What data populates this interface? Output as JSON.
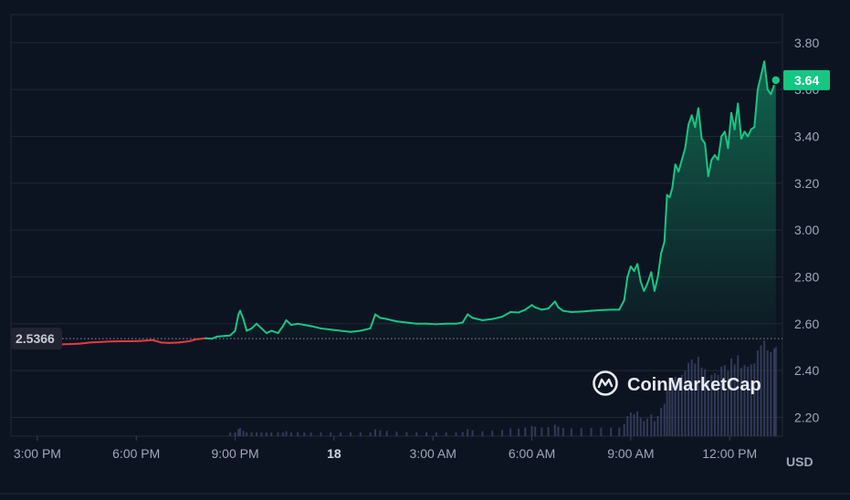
{
  "chart_data": {
    "type": "line",
    "y_ticks": [
      "3.80",
      "3.60",
      "3.40",
      "3.20",
      "3.00",
      "2.80",
      "2.60",
      "2.40",
      "2.20"
    ],
    "y_tick_values": [
      3.8,
      3.6,
      3.4,
      3.2,
      3.0,
      2.8,
      2.6,
      2.4,
      2.2
    ],
    "x_ticks": [
      {
        "label": "3:00 PM",
        "hour": 0,
        "bold": false
      },
      {
        "label": "6:00 PM",
        "hour": 3,
        "bold": false
      },
      {
        "label": "9:00 PM",
        "hour": 6,
        "bold": false
      },
      {
        "label": "18",
        "hour": 9,
        "bold": true
      },
      {
        "label": "3:00 AM",
        "hour": 12,
        "bold": false
      },
      {
        "label": "6:00 AM",
        "hour": 15,
        "bold": false
      },
      {
        "label": "9:00 AM",
        "hour": 18,
        "bold": false
      },
      {
        "label": "12:00 PM",
        "hour": 21,
        "bold": false
      }
    ],
    "ylim": [
      2.12,
      3.92
    ],
    "xlim_hours": [
      -0.8,
      22.6
    ],
    "ylabel": "USD",
    "baseline_value": 2.5366,
    "baseline_label": "2.5366",
    "current_value": 3.64,
    "current_label": "3.64",
    "grid": true,
    "colors": {
      "up": "#16c784",
      "down": "#ea3943",
      "grid": "#222836",
      "background": "#0d1421",
      "volume": "#3b4466"
    },
    "series": [
      {
        "points": [
          [
            -0.6,
            2.533
          ],
          [
            -0.3,
            2.532
          ],
          [
            0.0,
            2.531
          ],
          [
            0.25,
            2.525
          ],
          [
            0.45,
            2.515
          ],
          [
            0.7,
            2.512
          ],
          [
            1.0,
            2.513
          ],
          [
            1.3,
            2.515
          ],
          [
            1.6,
            2.52
          ],
          [
            1.9,
            2.522
          ],
          [
            2.2,
            2.524
          ],
          [
            2.5,
            2.525
          ],
          [
            2.8,
            2.525
          ],
          [
            3.1,
            2.526
          ],
          [
            3.3,
            2.528
          ],
          [
            3.5,
            2.53
          ],
          [
            3.75,
            2.52
          ],
          [
            4.0,
            2.518
          ],
          [
            4.3,
            2.52
          ],
          [
            4.6,
            2.525
          ],
          [
            4.8,
            2.533
          ],
          [
            5.1,
            2.538
          ],
          [
            5.3,
            2.536
          ],
          [
            5.45,
            2.545
          ],
          [
            5.7,
            2.548
          ],
          [
            5.85,
            2.55
          ],
          [
            6.0,
            2.57
          ],
          [
            6.1,
            2.64
          ],
          [
            6.15,
            2.655
          ],
          [
            6.25,
            2.62
          ],
          [
            6.35,
            2.57
          ],
          [
            6.5,
            2.58
          ],
          [
            6.65,
            2.6
          ],
          [
            6.8,
            2.58
          ],
          [
            6.95,
            2.56
          ],
          [
            7.1,
            2.57
          ],
          [
            7.3,
            2.56
          ],
          [
            7.45,
            2.59
          ],
          [
            7.55,
            2.615
          ],
          [
            7.7,
            2.595
          ],
          [
            7.9,
            2.6
          ],
          [
            8.1,
            2.595
          ],
          [
            8.3,
            2.59
          ],
          [
            8.6,
            2.58
          ],
          [
            8.9,
            2.575
          ],
          [
            9.2,
            2.57
          ],
          [
            9.5,
            2.565
          ],
          [
            9.8,
            2.57
          ],
          [
            10.1,
            2.58
          ],
          [
            10.25,
            2.64
          ],
          [
            10.4,
            2.625
          ],
          [
            10.6,
            2.62
          ],
          [
            10.9,
            2.61
          ],
          [
            11.2,
            2.605
          ],
          [
            11.5,
            2.6
          ],
          [
            11.8,
            2.6
          ],
          [
            12.1,
            2.598
          ],
          [
            12.4,
            2.6
          ],
          [
            12.7,
            2.6
          ],
          [
            12.9,
            2.605
          ],
          [
            13.05,
            2.64
          ],
          [
            13.2,
            2.625
          ],
          [
            13.5,
            2.615
          ],
          [
            13.8,
            2.62
          ],
          [
            14.1,
            2.63
          ],
          [
            14.35,
            2.65
          ],
          [
            14.6,
            2.648
          ],
          [
            14.8,
            2.66
          ],
          [
            15.0,
            2.68
          ],
          [
            15.1,
            2.67
          ],
          [
            15.3,
            2.66
          ],
          [
            15.5,
            2.665
          ],
          [
            15.7,
            2.695
          ],
          [
            15.8,
            2.67
          ],
          [
            15.95,
            2.655
          ],
          [
            16.2,
            2.65
          ],
          [
            16.5,
            2.652
          ],
          [
            16.8,
            2.655
          ],
          [
            17.1,
            2.658
          ],
          [
            17.4,
            2.66
          ],
          [
            17.65,
            2.66
          ],
          [
            17.8,
            2.7
          ],
          [
            17.9,
            2.8
          ],
          [
            18.0,
            2.845
          ],
          [
            18.1,
            2.825
          ],
          [
            18.2,
            2.855
          ],
          [
            18.3,
            2.78
          ],
          [
            18.4,
            2.74
          ],
          [
            18.5,
            2.77
          ],
          [
            18.62,
            2.82
          ],
          [
            18.72,
            2.74
          ],
          [
            18.82,
            2.8
          ],
          [
            18.92,
            2.9
          ],
          [
            19.02,
            2.95
          ],
          [
            19.1,
            3.15
          ],
          [
            19.18,
            3.14
          ],
          [
            19.26,
            3.18
          ],
          [
            19.35,
            3.28
          ],
          [
            19.45,
            3.25
          ],
          [
            19.55,
            3.3
          ],
          [
            19.65,
            3.35
          ],
          [
            19.75,
            3.45
          ],
          [
            19.85,
            3.49
          ],
          [
            19.95,
            3.44
          ],
          [
            20.05,
            3.52
          ],
          [
            20.15,
            3.39
          ],
          [
            20.25,
            3.37
          ],
          [
            20.35,
            3.23
          ],
          [
            20.45,
            3.3
          ],
          [
            20.55,
            3.32
          ],
          [
            20.65,
            3.3
          ],
          [
            20.75,
            3.4
          ],
          [
            20.85,
            3.42
          ],
          [
            20.95,
            3.35
          ],
          [
            21.05,
            3.5
          ],
          [
            21.15,
            3.43
          ],
          [
            21.25,
            3.54
          ],
          [
            21.35,
            3.39
          ],
          [
            21.45,
            3.42
          ],
          [
            21.55,
            3.4
          ],
          [
            21.65,
            3.43
          ],
          [
            21.75,
            3.44
          ],
          [
            21.85,
            3.6
          ],
          [
            21.95,
            3.66
          ],
          [
            22.05,
            3.72
          ],
          [
            22.15,
            3.6
          ],
          [
            22.25,
            3.58
          ],
          [
            22.35,
            3.62
          ],
          [
            22.4,
            3.64
          ]
        ]
      }
    ]
  },
  "watermark": {
    "text": "CoinMarketCap",
    "icon": "coinmarketcap-logo-icon"
  }
}
